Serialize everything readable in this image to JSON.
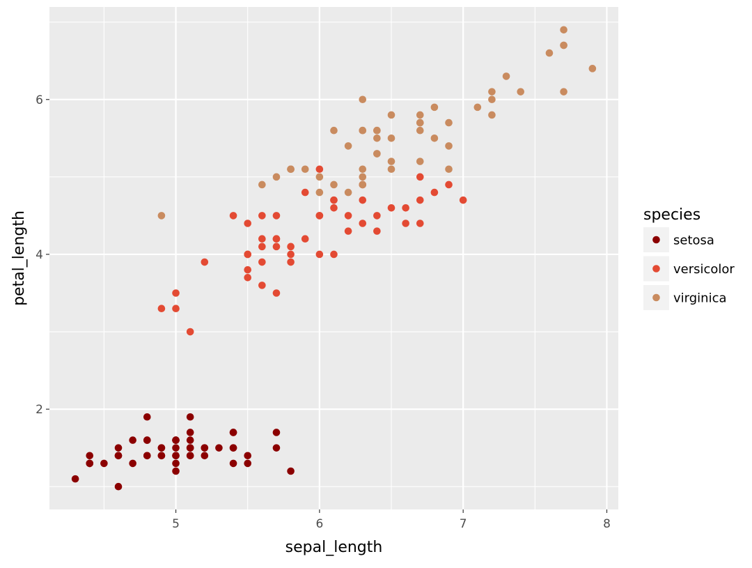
{
  "chart_data": {
    "type": "scatter",
    "title": "",
    "xlabel": "sepal_length",
    "ylabel": "petal_length",
    "xlim": [
      4.12,
      8.08
    ],
    "ylim": [
      0.705,
      7.195
    ],
    "x_ticks": [
      5,
      6,
      7,
      8
    ],
    "y_ticks": [
      2,
      4,
      6
    ],
    "grid": true,
    "legend": {
      "title": "species",
      "placement": "right"
    },
    "series": [
      {
        "name": "setosa",
        "color": "#8b0000",
        "points": [
          [
            5.1,
            1.4
          ],
          [
            4.9,
            1.4
          ],
          [
            4.7,
            1.3
          ],
          [
            4.6,
            1.5
          ],
          [
            5.0,
            1.4
          ],
          [
            5.4,
            1.7
          ],
          [
            4.6,
            1.4
          ],
          [
            5.0,
            1.5
          ],
          [
            4.4,
            1.4
          ],
          [
            4.9,
            1.5
          ],
          [
            5.4,
            1.5
          ],
          [
            4.8,
            1.6
          ],
          [
            4.8,
            1.4
          ],
          [
            4.3,
            1.1
          ],
          [
            5.8,
            1.2
          ],
          [
            5.7,
            1.5
          ],
          [
            5.4,
            1.3
          ],
          [
            5.1,
            1.4
          ],
          [
            5.7,
            1.7
          ],
          [
            5.1,
            1.5
          ],
          [
            5.4,
            1.7
          ],
          [
            5.1,
            1.5
          ],
          [
            4.6,
            1.0
          ],
          [
            5.1,
            1.7
          ],
          [
            4.8,
            1.9
          ],
          [
            5.0,
            1.6
          ],
          [
            5.0,
            1.6
          ],
          [
            5.2,
            1.5
          ],
          [
            5.2,
            1.4
          ],
          [
            4.7,
            1.6
          ],
          [
            4.8,
            1.6
          ],
          [
            5.4,
            1.5
          ],
          [
            5.2,
            1.5
          ],
          [
            5.5,
            1.4
          ],
          [
            4.9,
            1.5
          ],
          [
            5.0,
            1.2
          ],
          [
            5.5,
            1.3
          ],
          [
            4.9,
            1.4
          ],
          [
            4.4,
            1.3
          ],
          [
            5.1,
            1.5
          ],
          [
            5.0,
            1.3
          ],
          [
            4.5,
            1.3
          ],
          [
            4.4,
            1.3
          ],
          [
            5.0,
            1.6
          ],
          [
            5.1,
            1.9
          ],
          [
            4.8,
            1.4
          ],
          [
            5.1,
            1.6
          ],
          [
            4.6,
            1.4
          ],
          [
            5.3,
            1.5
          ],
          [
            5.0,
            1.4
          ]
        ]
      },
      {
        "name": "versicolor",
        "color": "#e34a33",
        "points": [
          [
            7.0,
            4.7
          ],
          [
            6.4,
            4.5
          ],
          [
            6.9,
            4.9
          ],
          [
            5.5,
            4.0
          ],
          [
            6.5,
            4.6
          ],
          [
            5.7,
            4.5
          ],
          [
            6.3,
            4.7
          ],
          [
            4.9,
            3.3
          ],
          [
            6.6,
            4.6
          ],
          [
            5.2,
            3.9
          ],
          [
            5.0,
            3.5
          ],
          [
            5.9,
            4.2
          ],
          [
            6.0,
            4.0
          ],
          [
            6.1,
            4.7
          ],
          [
            5.6,
            3.6
          ],
          [
            6.7,
            4.4
          ],
          [
            5.6,
            4.5
          ],
          [
            5.8,
            4.1
          ],
          [
            6.2,
            4.5
          ],
          [
            5.6,
            3.9
          ],
          [
            5.9,
            4.8
          ],
          [
            6.1,
            4.0
          ],
          [
            6.3,
            4.9
          ],
          [
            6.1,
            4.7
          ],
          [
            6.4,
            4.3
          ],
          [
            6.6,
            4.4
          ],
          [
            6.8,
            4.8
          ],
          [
            6.7,
            5.0
          ],
          [
            6.0,
            4.5
          ],
          [
            5.7,
            3.5
          ],
          [
            5.5,
            3.8
          ],
          [
            5.5,
            3.7
          ],
          [
            5.8,
            3.9
          ],
          [
            6.0,
            5.1
          ],
          [
            5.4,
            4.5
          ],
          [
            6.0,
            4.5
          ],
          [
            6.7,
            4.7
          ],
          [
            6.3,
            4.4
          ],
          [
            5.6,
            4.1
          ],
          [
            5.5,
            4.0
          ],
          [
            5.5,
            4.4
          ],
          [
            6.1,
            4.6
          ],
          [
            5.8,
            4.0
          ],
          [
            5.0,
            3.3
          ],
          [
            5.6,
            4.2
          ],
          [
            5.7,
            4.2
          ],
          [
            5.7,
            4.2
          ],
          [
            6.2,
            4.3
          ],
          [
            5.1,
            3.0
          ],
          [
            5.7,
            4.1
          ]
        ]
      },
      {
        "name": "virginica",
        "color": "#c98b5f",
        "points": [
          [
            6.3,
            6.0
          ],
          [
            5.8,
            5.1
          ],
          [
            7.1,
            5.9
          ],
          [
            6.3,
            5.6
          ],
          [
            6.5,
            5.8
          ],
          [
            7.6,
            6.6
          ],
          [
            4.9,
            4.5
          ],
          [
            7.3,
            6.3
          ],
          [
            6.7,
            5.8
          ],
          [
            7.2,
            6.1
          ],
          [
            6.5,
            5.1
          ],
          [
            6.4,
            5.3
          ],
          [
            6.8,
            5.5
          ],
          [
            5.7,
            5.0
          ],
          [
            5.8,
            5.1
          ],
          [
            6.4,
            5.3
          ],
          [
            6.5,
            5.5
          ],
          [
            7.7,
            6.7
          ],
          [
            7.7,
            6.9
          ],
          [
            6.0,
            5.0
          ],
          [
            6.9,
            5.7
          ],
          [
            5.6,
            4.9
          ],
          [
            7.7,
            6.7
          ],
          [
            6.3,
            4.9
          ],
          [
            6.7,
            5.7
          ],
          [
            7.2,
            6.0
          ],
          [
            6.2,
            4.8
          ],
          [
            6.1,
            4.9
          ],
          [
            6.4,
            5.6
          ],
          [
            7.2,
            5.8
          ],
          [
            7.4,
            6.1
          ],
          [
            7.9,
            6.4
          ],
          [
            6.4,
            5.6
          ],
          [
            6.3,
            5.1
          ],
          [
            6.1,
            5.6
          ],
          [
            7.7,
            6.1
          ],
          [
            6.3,
            5.6
          ],
          [
            6.4,
            5.5
          ],
          [
            6.0,
            4.8
          ],
          [
            6.9,
            5.4
          ],
          [
            6.7,
            5.6
          ],
          [
            6.9,
            5.1
          ],
          [
            5.8,
            5.1
          ],
          [
            6.8,
            5.9
          ],
          [
            6.7,
            5.7
          ],
          [
            6.7,
            5.2
          ],
          [
            6.3,
            5.0
          ],
          [
            6.5,
            5.2
          ],
          [
            6.2,
            5.4
          ],
          [
            5.9,
            5.1
          ]
        ]
      }
    ]
  }
}
